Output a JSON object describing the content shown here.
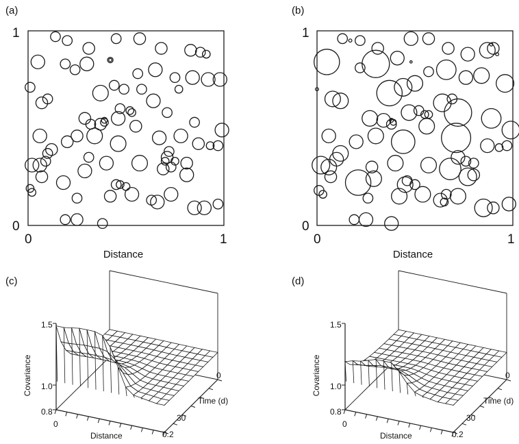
{
  "colors": {
    "ink": "#1a1a1a",
    "background": "#ffffff"
  },
  "chart_data": [
    {
      "panel": "(a)",
      "type": "scatter",
      "xlabel": "Distance",
      "ylabel": "",
      "xlim": [
        0,
        1
      ],
      "ylim": [
        0,
        1
      ],
      "tick_labels_x": [
        "0",
        "1"
      ],
      "tick_labels_y": [
        "0",
        "1"
      ],
      "points": [
        [
          0.14,
          0.97,
          0.025
        ],
        [
          0.2,
          0.95,
          0.025
        ],
        [
          0.31,
          0.91,
          0.03
        ],
        [
          0.45,
          0.96,
          0.025
        ],
        [
          0.57,
          0.96,
          0.03
        ],
        [
          0.19,
          0.83,
          0.025
        ],
        [
          0.24,
          0.8,
          0.025
        ],
        [
          0.3,
          0.83,
          0.035
        ],
        [
          0.42,
          0.85,
          0.014
        ],
        [
          0.42,
          0.85,
          0.008
        ],
        [
          0.56,
          0.78,
          0.025
        ],
        [
          0.68,
          0.91,
          0.03
        ],
        [
          0.83,
          0.9,
          0.03
        ],
        [
          0.88,
          0.89,
          0.025
        ],
        [
          0.91,
          0.88,
          0.02
        ],
        [
          0.05,
          0.84,
          0.035
        ],
        [
          0.01,
          0.71,
          0.025
        ],
        [
          0.07,
          0.63,
          0.03
        ],
        [
          0.1,
          0.65,
          0.025
        ],
        [
          0.37,
          0.68,
          0.04
        ],
        [
          0.44,
          0.72,
          0.025
        ],
        [
          0.49,
          0.7,
          0.025
        ],
        [
          0.58,
          0.7,
          0.025
        ],
        [
          0.65,
          0.8,
          0.035
        ],
        [
          0.75,
          0.76,
          0.025
        ],
        [
          0.77,
          0.7,
          0.02
        ],
        [
          0.84,
          0.76,
          0.035
        ],
        [
          0.92,
          0.75,
          0.035
        ],
        [
          0.98,
          0.75,
          0.035
        ],
        [
          0.47,
          0.6,
          0.025
        ],
        [
          0.52,
          0.59,
          0.02
        ],
        [
          0.53,
          0.58,
          0.02
        ],
        [
          0.64,
          0.64,
          0.035
        ],
        [
          0.71,
          0.58,
          0.025
        ],
        [
          0.55,
          0.51,
          0.03
        ],
        [
          0.29,
          0.55,
          0.03
        ],
        [
          0.32,
          0.52,
          0.025
        ],
        [
          0.37,
          0.52,
          0.03
        ],
        [
          0.39,
          0.53,
          0.02
        ],
        [
          0.39,
          0.54,
          0.015
        ],
        [
          0.46,
          0.55,
          0.035
        ],
        [
          0.99,
          0.49,
          0.035
        ],
        [
          0.85,
          0.53,
          0.025
        ],
        [
          0.06,
          0.46,
          0.035
        ],
        [
          0.2,
          0.43,
          0.03
        ],
        [
          0.25,
          0.46,
          0.03
        ],
        [
          0.34,
          0.46,
          0.04
        ],
        [
          0.46,
          0.42,
          0.04
        ],
        [
          0.67,
          0.45,
          0.035
        ],
        [
          0.78,
          0.46,
          0.035
        ],
        [
          0.87,
          0.42,
          0.03
        ],
        [
          0.93,
          0.41,
          0.02
        ],
        [
          0.97,
          0.41,
          0.025
        ],
        [
          0.12,
          0.39,
          0.03
        ],
        [
          0.1,
          0.37,
          0.025
        ],
        [
          0.72,
          0.38,
          0.025
        ],
        [
          0.71,
          0.35,
          0.03
        ],
        [
          0.7,
          0.33,
          0.02
        ],
        [
          0.75,
          0.33,
          0.02
        ],
        [
          0.81,
          0.32,
          0.03
        ],
        [
          0.02,
          0.31,
          0.035
        ],
        [
          0.06,
          0.31,
          0.035
        ],
        [
          0.09,
          0.33,
          0.025
        ],
        [
          0.29,
          0.28,
          0.035
        ],
        [
          0.31,
          0.35,
          0.025
        ],
        [
          0.4,
          0.32,
          0.035
        ],
        [
          0.57,
          0.32,
          0.04
        ],
        [
          0.69,
          0.29,
          0.03
        ],
        [
          0.73,
          0.3,
          0.025
        ],
        [
          0.81,
          0.26,
          0.035
        ],
        [
          0.07,
          0.25,
          0.03
        ],
        [
          0.18,
          0.22,
          0.035
        ],
        [
          0.45,
          0.21,
          0.025
        ],
        [
          0.47,
          0.21,
          0.02
        ],
        [
          0.5,
          0.2,
          0.02
        ],
        [
          0.25,
          0.14,
          0.025
        ],
        [
          0.42,
          0.15,
          0.03
        ],
        [
          0.53,
          0.16,
          0.035
        ],
        [
          0.63,
          0.13,
          0.025
        ],
        [
          0.66,
          0.12,
          0.035
        ],
        [
          0.73,
          0.16,
          0.035
        ],
        [
          0.01,
          0.19,
          0.02
        ],
        [
          0.02,
          0.17,
          0.02
        ],
        [
          0.85,
          0.09,
          0.035
        ],
        [
          0.9,
          0.09,
          0.035
        ],
        [
          0.97,
          0.11,
          0.025
        ],
        [
          0.19,
          0.03,
          0.025
        ],
        [
          0.25,
          0.03,
          0.03
        ],
        [
          0.38,
          0.01,
          0.025
        ]
      ]
    },
    {
      "panel": "(b)",
      "type": "scatter",
      "xlabel": "Distance",
      "ylabel": "",
      "xlim": [
        0,
        1
      ],
      "ylim": [
        0,
        1
      ],
      "tick_labels_x": [
        "0",
        "1"
      ],
      "tick_labels_y": [
        "0",
        "1"
      ],
      "points": [
        [
          0.13,
          0.96,
          0.025
        ],
        [
          0.17,
          0.95,
          0.008
        ],
        [
          0.22,
          0.95,
          0.025
        ],
        [
          0.31,
          0.91,
          0.03
        ],
        [
          0.48,
          0.96,
          0.035
        ],
        [
          0.57,
          0.96,
          0.03
        ],
        [
          0.67,
          0.91,
          0.03
        ],
        [
          0.77,
          0.88,
          0.035
        ],
        [
          0.87,
          0.9,
          0.04
        ],
        [
          0.9,
          0.91,
          0.03
        ],
        [
          0.89,
          0.93,
          0.008
        ],
        [
          0.92,
          0.88,
          0.008
        ],
        [
          0.05,
          0.84,
          0.065
        ],
        [
          0.22,
          0.81,
          0.025
        ],
        [
          0.3,
          0.83,
          0.07
        ],
        [
          0.41,
          0.86,
          0.035
        ],
        [
          0.48,
          0.84,
          0.006
        ],
        [
          0.57,
          0.79,
          0.025
        ],
        [
          0.66,
          0.8,
          0.05
        ],
        [
          0.76,
          0.76,
          0.035
        ],
        [
          0.84,
          0.77,
          0.04
        ],
        [
          0.96,
          0.73,
          0.045
        ],
        [
          0.0,
          0.7,
          0.008
        ],
        [
          0.08,
          0.65,
          0.04
        ],
        [
          0.12,
          0.64,
          0.04
        ],
        [
          0.37,
          0.68,
          0.065
        ],
        [
          0.44,
          0.71,
          0.045
        ],
        [
          0.5,
          0.73,
          0.04
        ],
        [
          0.64,
          0.63,
          0.045
        ],
        [
          0.69,
          0.65,
          0.025
        ],
        [
          0.72,
          0.58,
          0.07
        ],
        [
          0.52,
          0.59,
          0.025
        ],
        [
          0.55,
          0.57,
          0.02
        ],
        [
          0.57,
          0.57,
          0.02
        ],
        [
          0.47,
          0.58,
          0.04
        ],
        [
          0.89,
          0.55,
          0.05
        ],
        [
          0.27,
          0.55,
          0.04
        ],
        [
          0.34,
          0.54,
          0.035
        ],
        [
          0.38,
          0.52,
          0.025
        ],
        [
          0.39,
          0.53,
          0.015
        ],
        [
          0.38,
          0.54,
          0.01
        ],
        [
          0.56,
          0.51,
          0.04
        ],
        [
          0.99,
          0.49,
          0.045
        ],
        [
          0.06,
          0.46,
          0.035
        ],
        [
          0.2,
          0.43,
          0.035
        ],
        [
          0.3,
          0.46,
          0.04
        ],
        [
          0.44,
          0.43,
          0.06
        ],
        [
          0.71,
          0.45,
          0.075
        ],
        [
          0.87,
          0.41,
          0.035
        ],
        [
          0.93,
          0.4,
          0.02
        ],
        [
          0.97,
          0.41,
          0.025
        ],
        [
          0.12,
          0.37,
          0.04
        ],
        [
          0.1,
          0.34,
          0.035
        ],
        [
          0.72,
          0.35,
          0.035
        ],
        [
          0.76,
          0.33,
          0.025
        ],
        [
          0.8,
          0.32,
          0.025
        ],
        [
          0.02,
          0.31,
          0.045
        ],
        [
          0.06,
          0.3,
          0.04
        ],
        [
          0.28,
          0.3,
          0.03
        ],
        [
          0.29,
          0.24,
          0.04
        ],
        [
          0.4,
          0.32,
          0.04
        ],
        [
          0.57,
          0.31,
          0.04
        ],
        [
          0.68,
          0.29,
          0.055
        ],
        [
          0.77,
          0.25,
          0.045
        ],
        [
          0.8,
          0.26,
          0.03
        ],
        [
          0.07,
          0.25,
          0.03
        ],
        [
          0.21,
          0.22,
          0.065
        ],
        [
          0.45,
          0.21,
          0.04
        ],
        [
          0.46,
          0.23,
          0.025
        ],
        [
          0.5,
          0.21,
          0.025
        ],
        [
          0.26,
          0.14,
          0.025
        ],
        [
          0.42,
          0.15,
          0.04
        ],
        [
          0.54,
          0.16,
          0.04
        ],
        [
          0.63,
          0.13,
          0.035
        ],
        [
          0.65,
          0.12,
          0.02
        ],
        [
          0.72,
          0.15,
          0.04
        ],
        [
          0.66,
          0.16,
          0.025
        ],
        [
          0.01,
          0.18,
          0.025
        ],
        [
          0.03,
          0.16,
          0.02
        ],
        [
          0.85,
          0.09,
          0.045
        ],
        [
          0.9,
          0.09,
          0.03
        ],
        [
          0.98,
          0.11,
          0.035
        ],
        [
          0.19,
          0.03,
          0.025
        ],
        [
          0.25,
          0.03,
          0.035
        ],
        [
          0.38,
          0.01,
          0.035
        ]
      ]
    },
    {
      "panel": "(c)",
      "type": "surface",
      "zlabel": "Covariance",
      "xlabel": "Distance",
      "ylabel": "Time (d)",
      "x_tick_labels": [
        "0",
        "0.2"
      ],
      "y_tick_labels": [
        "0",
        "30"
      ],
      "z_tick_labels": [
        "0.8",
        "1.0",
        "1.5"
      ],
      "zlim": [
        0.8,
        1.5
      ],
      "profile_at_time_0": [
        1.48,
        1.48,
        1.49,
        1.5,
        1.5,
        1.5,
        1.48,
        1.4,
        1.25,
        1.1,
        1.05,
        1.04,
        1.03,
        1.02,
        1.02
      ],
      "long_distance_level": 1.02
    },
    {
      "panel": "(d)",
      "type": "surface",
      "zlabel": "Covariance",
      "xlabel": "Distance",
      "ylabel": "Time (d)",
      "x_tick_labels": [
        "0",
        "0.2"
      ],
      "y_tick_labels": [
        "0",
        "30"
      ],
      "z_tick_labels": [
        "0.8",
        "1.0",
        "1.5"
      ],
      "zlim": [
        0.8,
        1.5
      ],
      "profile_at_time_0": [
        1.19,
        1.21,
        1.22,
        1.24,
        1.26,
        1.26,
        1.26,
        1.2,
        1.12,
        1.06,
        1.04,
        1.03,
        1.02,
        1.02,
        1.02
      ],
      "long_distance_level": 1.02
    }
  ]
}
